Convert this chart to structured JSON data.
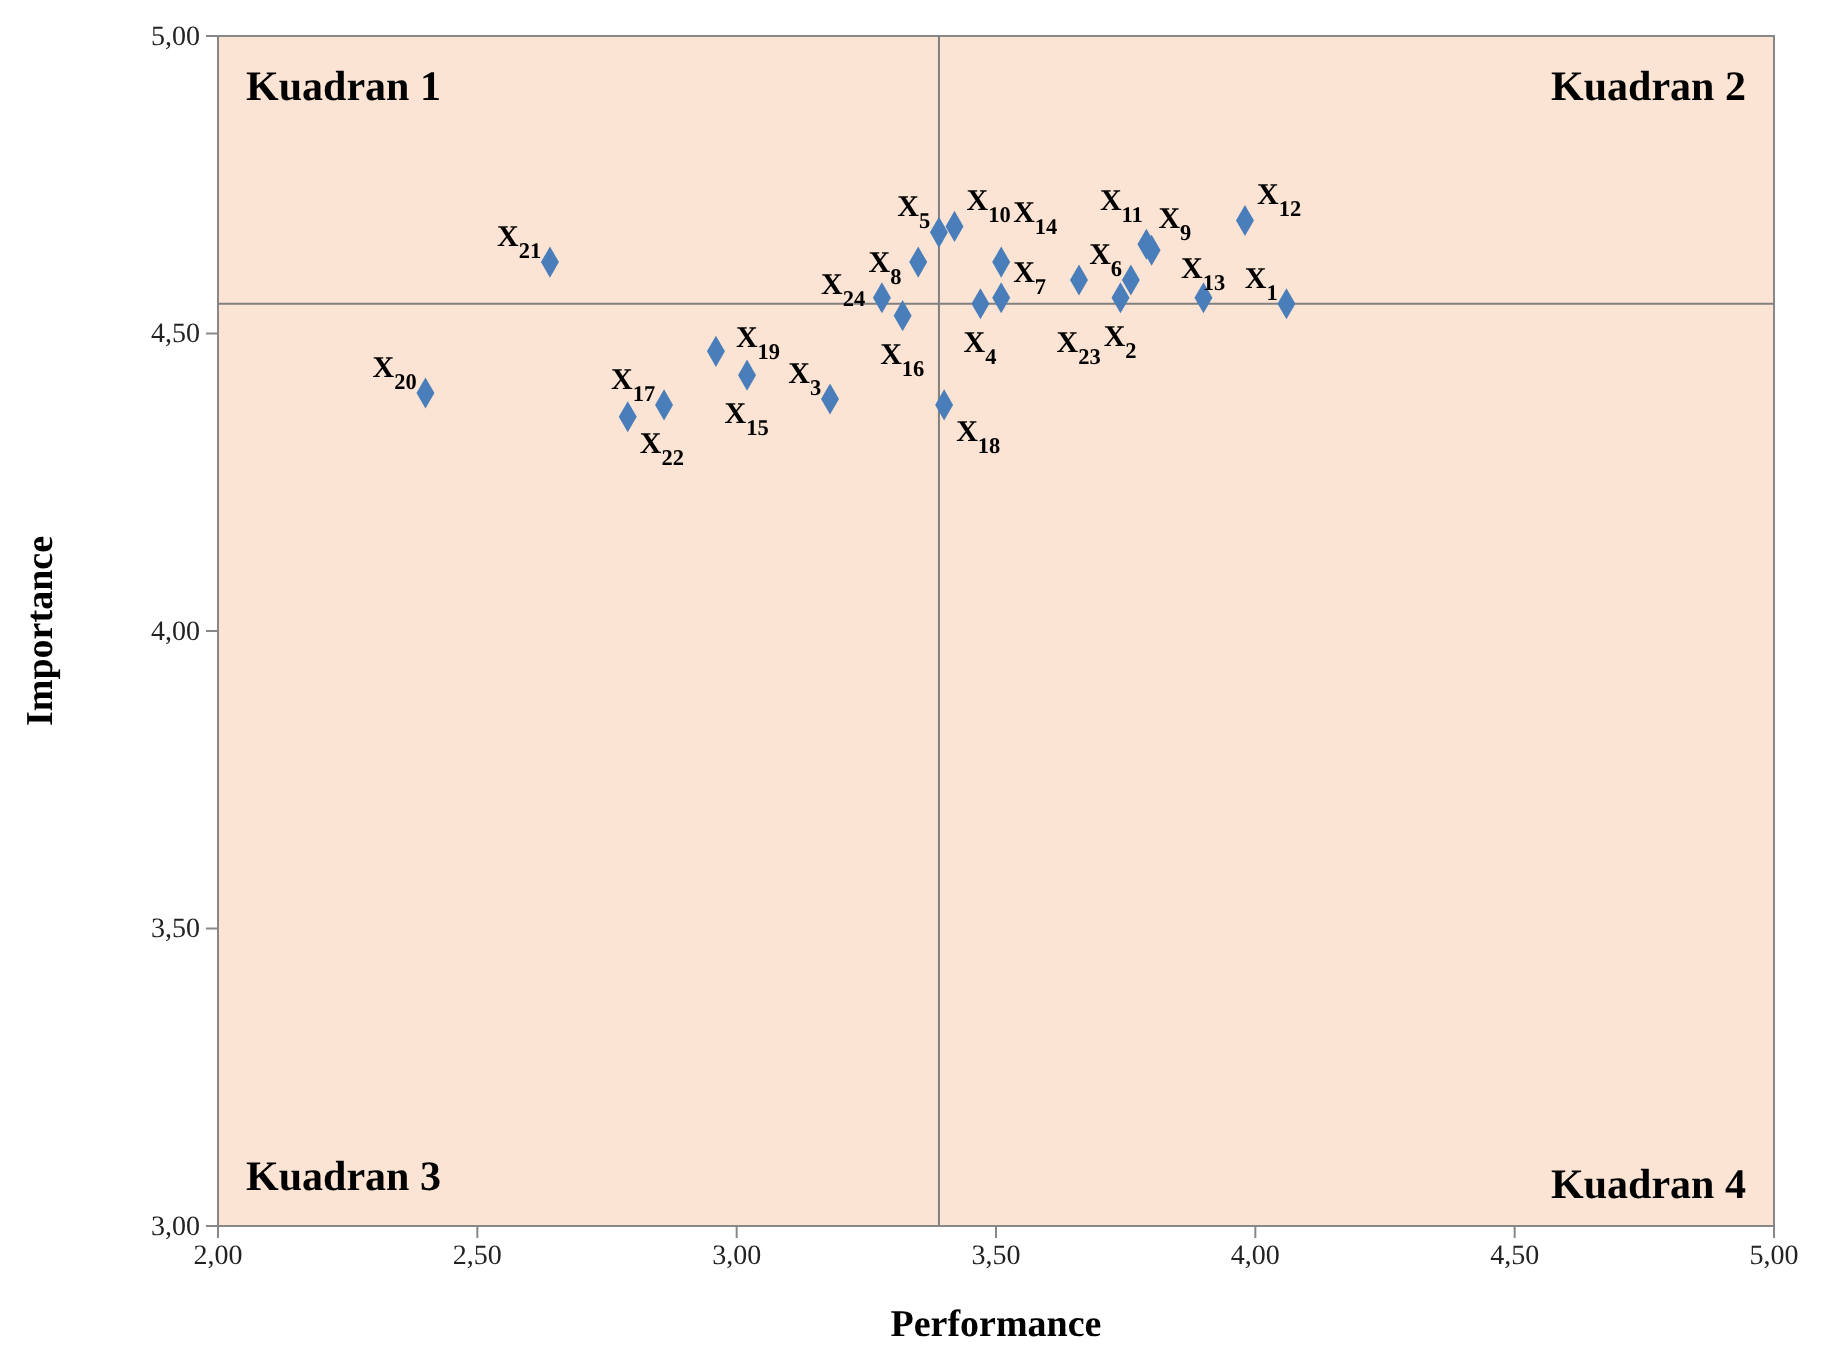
{
  "chart_data": {
    "type": "scatter",
    "xlabel": "Performance",
    "ylabel": "Importance",
    "x": [
      4.06,
      3.74,
      3.18,
      3.47,
      3.39,
      3.76,
      3.51,
      3.35,
      3.79,
      3.42,
      3.8,
      3.98,
      3.9,
      3.51,
      3.02,
      3.32,
      2.86,
      3.4,
      2.96,
      2.4,
      2.64,
      2.79,
      3.66,
      3.28
    ],
    "series": [
      {
        "color": "#4a7ebb",
        "values": [
          4.55,
          4.56,
          4.39,
          4.55,
          4.67,
          4.59,
          4.56,
          4.62,
          4.65,
          4.68,
          4.64,
          4.69,
          4.56,
          4.62,
          4.43,
          4.53,
          4.38,
          4.38,
          4.47,
          4.4,
          4.62,
          4.36,
          4.59,
          4.56
        ]
      }
    ],
    "marker": "diamond",
    "grid": false,
    "xlim": [
      2,
      5
    ],
    "ylim": [
      3,
      5
    ],
    "xticks": [
      {
        "value": 2,
        "label": "2,00"
      },
      {
        "value": 2.5,
        "label": "2,50"
      },
      {
        "value": 3,
        "label": "3,00"
      },
      {
        "value": 3.5,
        "label": "3,50"
      },
      {
        "value": 4,
        "label": "4,00"
      },
      {
        "value": 4.5,
        "label": "4,50"
      },
      {
        "value": 5,
        "label": "5,00"
      }
    ],
    "yticks": [
      {
        "value": 3,
        "label": "3,00"
      },
      {
        "value": 3.5,
        "label": "3,50"
      },
      {
        "value": 4,
        "label": "4,00"
      },
      {
        "value": 4.5,
        "label": "4,50"
      },
      {
        "value": 5,
        "label": "5,00"
      }
    ],
    "ref_lines": [
      {
        "axis": "x",
        "value": 3.39,
        "color": "#808080"
      },
      {
        "axis": "y",
        "value": 4.55,
        "color": "#808080"
      }
    ],
    "annotations": [
      "Kuadran 1",
      "Kuadran 2",
      "Kuadran 3",
      "Kuadran 4",
      {
        "text": "X$_{1}$",
        "x": 4.06,
        "y": 4.55
      },
      {
        "text": "X$_{2}$",
        "x": 3.74,
        "y": 4.56
      },
      {
        "text": "X$_{3}$",
        "x": 3.18,
        "y": 4.39
      },
      {
        "text": "X$_{4}$",
        "x": 3.47,
        "y": 4.55
      },
      {
        "text": "X$_{5}$",
        "x": 3.39,
        "y": 4.67
      },
      {
        "text": "X$_{6}$",
        "x": 3.76,
        "y": 4.59
      },
      {
        "text": "X$_{7}$",
        "x": 3.51,
        "y": 4.56
      },
      {
        "text": "X$_{8}$",
        "x": 3.35,
        "y": 4.62
      },
      {
        "text": "X$_{9}$",
        "x": 3.79,
        "y": 4.65
      },
      {
        "text": "X$_{10}$",
        "x": 3.42,
        "y": 4.68
      },
      {
        "text": "X$_{11}$",
        "x": 3.8,
        "y": 4.64
      },
      {
        "text": "X$_{12}$",
        "x": 3.98,
        "y": 4.69
      },
      {
        "text": "X$_{13}$",
        "x": 3.9,
        "y": 4.56
      },
      {
        "text": "X$_{14}$",
        "x": 3.51,
        "y": 4.62
      },
      {
        "text": "X$_{15}$",
        "x": 3.02,
        "y": 4.43
      },
      {
        "text": "X$_{16}$",
        "x": 3.32,
        "y": 4.53
      },
      {
        "text": "X$_{17}$",
        "x": 2.86,
        "y": 4.38
      },
      {
        "text": "X$_{18}$",
        "x": 3.4,
        "y": 4.38
      },
      {
        "text": "X$_{19}$",
        "x": 2.96,
        "y": 4.47
      },
      {
        "text": "X$_{20}$",
        "x": 2.4,
        "y": 4.4
      },
      {
        "text": "X$_{21}$",
        "x": 2.64,
        "y": 4.62
      },
      {
        "text": "X$_{22}$",
        "x": 2.79,
        "y": 4.36
      },
      {
        "text": "X$_{23}$",
        "x": 3.66,
        "y": 4.59
      },
      {
        "text": "X$_{24}$",
        "x": 3.28,
        "y": 4.56
      }
    ]
  }
}
